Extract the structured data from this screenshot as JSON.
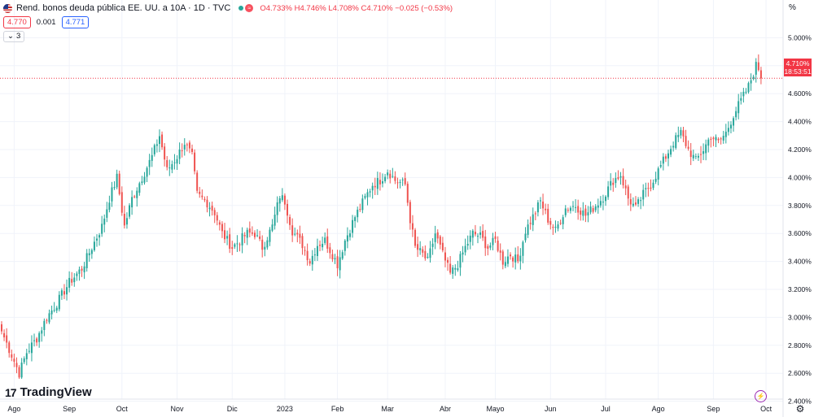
{
  "header": {
    "symbol": "Rend. bonos deuda pública EE. UU. a 10A · 1D · TVC",
    "ohlc": {
      "o_label": "O",
      "o": "4.733%",
      "h_label": "H",
      "h": "4.746%",
      "l_label": "L",
      "l": "4.708%",
      "c_label": "C",
      "c": "4.710%",
      "change": "−0.025 (−0.53%)"
    },
    "sell_price": "4.770",
    "spread": "0.001",
    "buy_price": "4.771",
    "indicators_count": "3",
    "collapse_icon": "chevron-down-icon"
  },
  "last_price_tag": {
    "price": "4.710%",
    "countdown": "18:53:51"
  },
  "axis": {
    "unit": "%"
  },
  "branding": {
    "name": "TradingView",
    "logo_text": "17"
  },
  "colors": {
    "up": "#26a69a",
    "down": "#ef5350",
    "price_line": "#f23645",
    "grid": "#f0f3fa",
    "purple": "#9c27b0"
  },
  "icons": {
    "settings": "gear-icon",
    "lightning": "lightning-icon"
  },
  "chart_data": {
    "type": "candlestick",
    "title": "Rend. bonos deuda pública EE. UU. a 10A · 1D · TVC",
    "ylim": [
      2.3,
      5.05
    ],
    "yticks": [
      "2.400%",
      "2.600%",
      "2.800%",
      "3.000%",
      "3.200%",
      "3.400%",
      "3.600%",
      "3.800%",
      "4.000%",
      "4.200%",
      "4.400%",
      "4.600%",
      "4.800%",
      "5.000%"
    ],
    "ytick_values": [
      2.4,
      2.6,
      2.8,
      3.0,
      3.2,
      3.4,
      3.6,
      3.8,
      4.0,
      4.2,
      4.4,
      4.6,
      4.8,
      5.0
    ],
    "xticks": [
      {
        "label": "Ago",
        "index": 5
      },
      {
        "label": "Sep",
        "index": 27
      },
      {
        "label": "Oct",
        "index": 48
      },
      {
        "label": "Nov",
        "index": 70
      },
      {
        "label": "Dic",
        "index": 92
      },
      {
        "label": "2023",
        "index": 113
      },
      {
        "label": "Feb",
        "index": 134
      },
      {
        "label": "Mar",
        "index": 154
      },
      {
        "label": "Abr",
        "index": 177
      },
      {
        "label": "Mayo",
        "index": 197
      },
      {
        "label": "Jun",
        "index": 219
      },
      {
        "label": "Jul",
        "index": 241
      },
      {
        "label": "Ago",
        "index": 262
      },
      {
        "label": "Sep",
        "index": 284
      },
      {
        "label": "Oct",
        "index": 305
      }
    ],
    "last_close": 4.71,
    "close_keyframes": [
      [
        0,
        2.9
      ],
      [
        4,
        2.73
      ],
      [
        7,
        2.6
      ],
      [
        10,
        2.75
      ],
      [
        14,
        2.85
      ],
      [
        18,
        3.0
      ],
      [
        22,
        3.1
      ],
      [
        27,
        3.25
      ],
      [
        32,
        3.35
      ],
      [
        36,
        3.5
      ],
      [
        40,
        3.65
      ],
      [
        43,
        3.85
      ],
      [
        46,
        4.0
      ],
      [
        49,
        3.65
      ],
      [
        52,
        3.85
      ],
      [
        56,
        4.0
      ],
      [
        60,
        4.15
      ],
      [
        63,
        4.3
      ],
      [
        66,
        4.05
      ],
      [
        70,
        4.15
      ],
      [
        73,
        4.25
      ],
      [
        76,
        4.15
      ],
      [
        78,
        3.88
      ],
      [
        82,
        3.82
      ],
      [
        85,
        3.75
      ],
      [
        88,
        3.6
      ],
      [
        92,
        3.5
      ],
      [
        95,
        3.55
      ],
      [
        98,
        3.6
      ],
      [
        101,
        3.6
      ],
      [
        104,
        3.5
      ],
      [
        108,
        3.65
      ],
      [
        111,
        3.87
      ],
      [
        113,
        3.83
      ],
      [
        116,
        3.62
      ],
      [
        120,
        3.52
      ],
      [
        123,
        3.4
      ],
      [
        126,
        3.52
      ],
      [
        129,
        3.55
      ],
      [
        132,
        3.45
      ],
      [
        134,
        3.38
      ],
      [
        137,
        3.55
      ],
      [
        141,
        3.72
      ],
      [
        144,
        3.82
      ],
      [
        148,
        3.95
      ],
      [
        151,
        3.98
      ],
      [
        154,
        4.05
      ],
      [
        157,
        3.98
      ],
      [
        161,
        3.95
      ],
      [
        163,
        3.7
      ],
      [
        165,
        3.5
      ],
      [
        168,
        3.45
      ],
      [
        170,
        3.4
      ],
      [
        173,
        3.6
      ],
      [
        176,
        3.45
      ],
      [
        179,
        3.31
      ],
      [
        182,
        3.38
      ],
      [
        185,
        3.5
      ],
      [
        188,
        3.6
      ],
      [
        191,
        3.58
      ],
      [
        194,
        3.5
      ],
      [
        197,
        3.55
      ],
      [
        200,
        3.4
      ],
      [
        203,
        3.45
      ],
      [
        206,
        3.4
      ],
      [
        209,
        3.62
      ],
      [
        212,
        3.72
      ],
      [
        215,
        3.83
      ],
      [
        218,
        3.7
      ],
      [
        221,
        3.62
      ],
      [
        225,
        3.78
      ],
      [
        229,
        3.8
      ],
      [
        233,
        3.73
      ],
      [
        237,
        3.8
      ],
      [
        240,
        3.86
      ],
      [
        244,
        3.98
      ],
      [
        247,
        4.02
      ],
      [
        250,
        3.85
      ],
      [
        253,
        3.78
      ],
      [
        256,
        3.88
      ],
      [
        259,
        3.95
      ],
      [
        262,
        4.05
      ],
      [
        265,
        4.15
      ],
      [
        268,
        4.25
      ],
      [
        271,
        4.32
      ],
      [
        274,
        4.2
      ],
      [
        277,
        4.12
      ],
      [
        280,
        4.2
      ],
      [
        283,
        4.3
      ],
      [
        286,
        4.25
      ],
      [
        289,
        4.32
      ],
      [
        292,
        4.45
      ],
      [
        295,
        4.55
      ],
      [
        298,
        4.65
      ],
      [
        301,
        4.8
      ],
      [
        302,
        4.78
      ],
      [
        303,
        4.71
      ]
    ]
  }
}
